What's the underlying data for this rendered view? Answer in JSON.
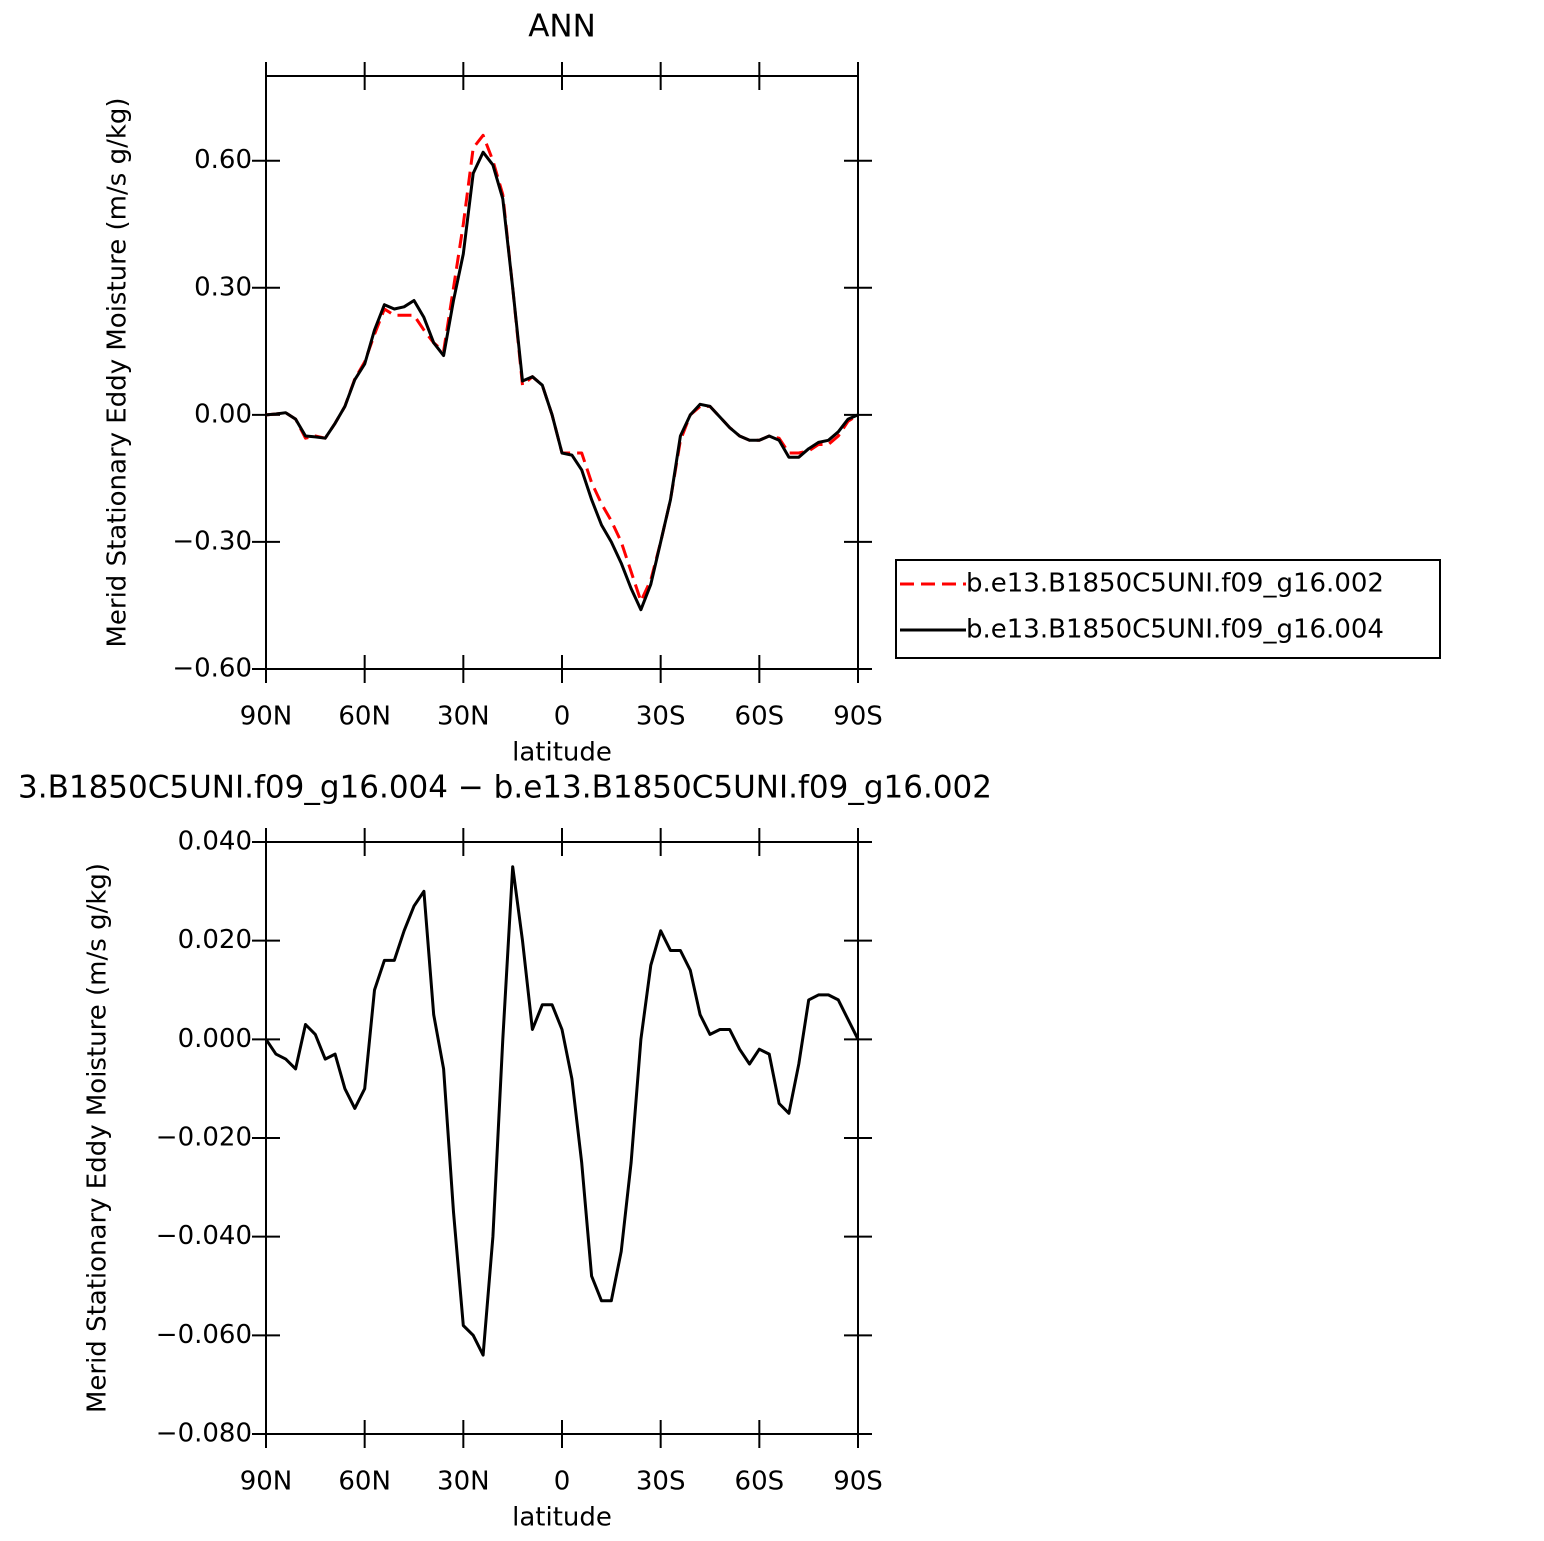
{
  "chart_data": [
    {
      "type": "line",
      "title": "ANN",
      "xlabel": "latitude",
      "ylabel": "Merid Stationary Eddy Moisture (m/s g/kg)",
      "x": [
        90,
        87,
        84,
        81,
        78,
        75,
        72,
        69,
        66,
        63,
        60,
        57,
        54,
        51,
        48,
        45,
        42,
        39,
        36,
        33,
        30,
        27,
        24,
        21,
        18,
        15,
        12,
        9,
        6,
        3,
        0,
        -3,
        -6,
        -9,
        -12,
        -15,
        -18,
        -21,
        -24,
        -27,
        -30,
        -33,
        -36,
        -39,
        -42,
        -45,
        -48,
        -51,
        -54,
        -57,
        -60,
        -63,
        -66,
        -69,
        -72,
        -75,
        -78,
        -81,
        -84,
        -87,
        -90
      ],
      "series": [
        {
          "name": "b.e13.B1850C5UNI.f09_g16.002",
          "color": "#ff0000",
          "dash": "dashed",
          "values": [
            0.0,
            0.002,
            0.005,
            -0.01,
            -0.055,
            -0.05,
            -0.055,
            -0.02,
            0.02,
            0.085,
            0.125,
            0.19,
            0.25,
            0.235,
            0.235,
            0.235,
            0.2,
            0.17,
            0.15,
            0.3,
            0.45,
            0.63,
            0.66,
            0.6,
            0.52,
            0.3,
            0.07,
            0.09,
            0.07,
            0.0,
            -0.09,
            -0.09,
            -0.09,
            -0.16,
            -0.21,
            -0.25,
            -0.3,
            -0.37,
            -0.44,
            -0.39,
            -0.3,
            -0.2,
            -0.06,
            0.0,
            0.02,
            0.02,
            -0.005,
            -0.03,
            -0.05,
            -0.06,
            -0.06,
            -0.05,
            -0.055,
            -0.09,
            -0.09,
            -0.085,
            -0.07,
            -0.07,
            -0.05,
            -0.015,
            0.0
          ]
        },
        {
          "name": "b.e13.B1850C5UNI.f09_g16.004",
          "color": "#000000",
          "dash": "solid",
          "values": [
            0.0,
            0.002,
            0.005,
            -0.01,
            -0.05,
            -0.052,
            -0.055,
            -0.02,
            0.02,
            0.083,
            0.12,
            0.2,
            0.26,
            0.25,
            0.255,
            0.27,
            0.23,
            0.17,
            0.14,
            0.27,
            0.38,
            0.57,
            0.62,
            0.59,
            0.51,
            0.3,
            0.08,
            0.09,
            0.07,
            0.0,
            -0.09,
            -0.095,
            -0.13,
            -0.2,
            -0.26,
            -0.3,
            -0.35,
            -0.41,
            -0.46,
            -0.4,
            -0.3,
            -0.2,
            -0.05,
            0.0,
            0.025,
            0.02,
            -0.005,
            -0.03,
            -0.05,
            -0.06,
            -0.06,
            -0.05,
            -0.06,
            -0.1,
            -0.1,
            -0.08,
            -0.065,
            -0.06,
            -0.04,
            -0.01,
            0.0
          ]
        }
      ],
      "xlim": [
        90,
        -90
      ],
      "xticks": [
        {
          "value": 90,
          "label": "90N"
        },
        {
          "value": 60,
          "label": "60N"
        },
        {
          "value": 30,
          "label": "30N"
        },
        0,
        {
          "value": -30,
          "label": "30S"
        },
        {
          "value": -60,
          "label": "60S"
        },
        {
          "value": -90,
          "label": "90S"
        }
      ],
      "ylim": [
        -0.6,
        0.8
      ],
      "yticks": [
        {
          "value": -0.6,
          "label": "−0.60"
        },
        {
          "value": -0.3,
          "label": "−0.30"
        },
        {
          "value": 0,
          "label": "0.00"
        },
        {
          "value": 0.3,
          "label": "0.30"
        },
        {
          "value": 0.6,
          "label": "0.60"
        }
      ],
      "legend": "right"
    },
    {
      "type": "line",
      "title": "3.B1850C5UNI.f09_g16.004 − b.e13.B1850C5UNI.f09_g16.002",
      "xlabel": "latitude",
      "ylabel": "Merid Stationary Eddy Moisture (m/s g/kg)",
      "x": [
        90,
        87,
        84,
        81,
        78,
        75,
        72,
        69,
        66,
        63,
        60,
        57,
        54,
        51,
        48,
        45,
        42,
        39,
        36,
        33,
        30,
        27,
        24,
        21,
        18,
        15,
        12,
        9,
        6,
        3,
        0,
        -3,
        -6,
        -9,
        -12,
        -15,
        -18,
        -21,
        -24,
        -27,
        -30,
        -33,
        -36,
        -39,
        -42,
        -45,
        -48,
        -51,
        -54,
        -57,
        -60,
        -63,
        -66,
        -69,
        -72,
        -75,
        -78,
        -81,
        -84,
        -87,
        -90
      ],
      "color": "#000000",
      "values": [
        0.0,
        -0.003,
        -0.004,
        -0.006,
        0.003,
        0.001,
        -0.004,
        -0.003,
        -0.01,
        -0.014,
        -0.01,
        0.01,
        0.016,
        0.016,
        0.022,
        0.027,
        0.03,
        0.005,
        -0.006,
        -0.035,
        -0.058,
        -0.06,
        -0.064,
        -0.04,
        0.0,
        0.035,
        0.02,
        0.002,
        0.007,
        0.007,
        0.002,
        -0.008,
        -0.025,
        -0.048,
        -0.053,
        -0.053,
        -0.043,
        -0.025,
        0.0,
        0.015,
        0.022,
        0.018,
        0.018,
        0.014,
        0.005,
        0.001,
        0.002,
        0.002,
        -0.002,
        -0.005,
        -0.002,
        -0.003,
        -0.013,
        -0.015,
        -0.005,
        0.008,
        0.009,
        0.009,
        0.008,
        0.004,
        0.0
      ],
      "xlim": [
        90,
        -90
      ],
      "xticks": [
        {
          "value": 90,
          "label": "90N"
        },
        {
          "value": 60,
          "label": "60N"
        },
        {
          "value": 30,
          "label": "30N"
        },
        0,
        {
          "value": -30,
          "label": "30S"
        },
        {
          "value": -60,
          "label": "60S"
        },
        {
          "value": -90,
          "label": "90S"
        }
      ],
      "ylim": [
        -0.08,
        0.04
      ],
      "yticks": [
        {
          "value": -0.08,
          "label": "−0.080"
        },
        {
          "value": -0.06,
          "label": "−0.060"
        },
        {
          "value": -0.04,
          "label": "−0.040"
        },
        {
          "value": -0.02,
          "label": "−0.020"
        },
        {
          "value": 0,
          "label": "0.000"
        },
        {
          "value": 0.02,
          "label": "0.020"
        },
        {
          "value": 0.04,
          "label": "0.040"
        }
      ]
    }
  ]
}
